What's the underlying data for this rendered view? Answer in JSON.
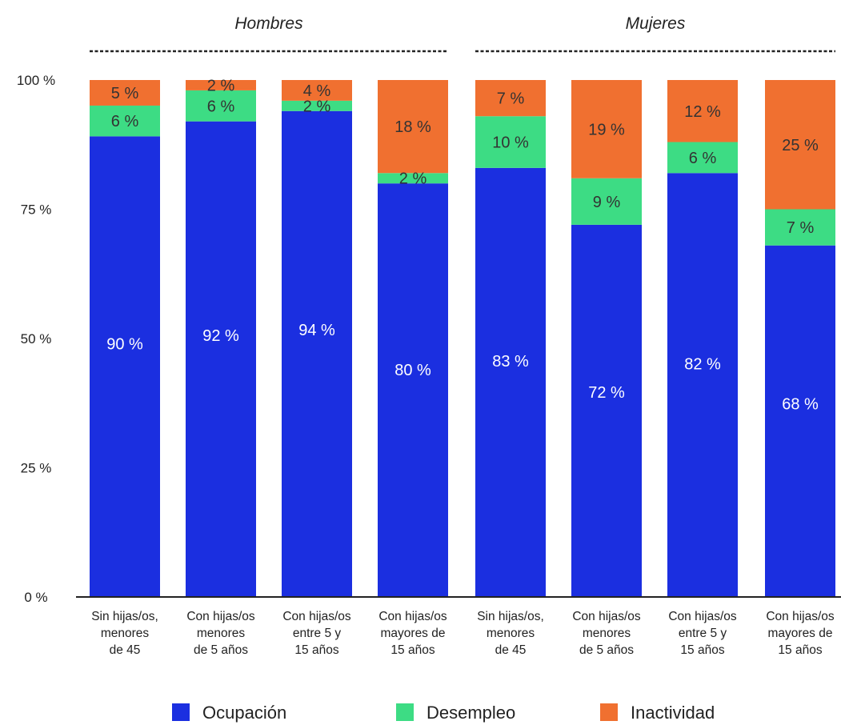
{
  "chart_data": {
    "type": "bar",
    "stacked": true,
    "groups": [
      {
        "label": "Hombres",
        "categories": [
          0,
          1,
          2,
          3
        ]
      },
      {
        "label": "Mujeres",
        "categories": [
          4,
          5,
          6,
          7
        ]
      }
    ],
    "categories": [
      [
        "Sin hijas/os,",
        "menores",
        "de 45"
      ],
      [
        "Con hijas/os",
        "menores",
        "de 5 años"
      ],
      [
        "Con hijas/os",
        "entre 5 y",
        "15 años"
      ],
      [
        "Con hijas/os",
        "mayores de",
        "15 años"
      ],
      [
        "Sin hijas/os,",
        "menores",
        "de 45"
      ],
      [
        "Con hijas/os",
        "menores",
        "de 5 años"
      ],
      [
        "Con hijas/os",
        "entre 5 y",
        "15 años"
      ],
      [
        "Con hijas/os",
        "mayores de",
        "15 años"
      ]
    ],
    "series": [
      {
        "name": "Ocupación",
        "color": "#1b2fe0",
        "values": [
          90,
          92,
          94,
          80,
          83,
          72,
          82,
          68
        ],
        "labels": [
          "90 %",
          "92 %",
          "94 %",
          "80 %",
          "83 %",
          "72 %",
          "82 %",
          "68 %"
        ],
        "label_color": "#ffffff"
      },
      {
        "name": "Desempleo",
        "color": "#3ddc84",
        "values": [
          6,
          6,
          2,
          2,
          10,
          9,
          6,
          7
        ],
        "labels": [
          "6 %",
          "6 %",
          "2 %",
          "2 %",
          "10 %",
          "9 %",
          "6 %",
          "7 %"
        ],
        "label_color": "#333333"
      },
      {
        "name": "Inactividad",
        "color": "#f07030",
        "values": [
          5,
          2,
          4,
          18,
          7,
          19,
          12,
          25
        ],
        "labels": [
          "5 %",
          "2 %",
          "4 %",
          "18 %",
          "7 %",
          "19 %",
          "12 %",
          "25 %"
        ],
        "label_color": "#333333"
      }
    ],
    "yticks": [
      0,
      25,
      50,
      75,
      100
    ],
    "ytick_labels": [
      "0 %",
      "25 %",
      "50 %",
      "75 %",
      "100 %"
    ],
    "ylim": [
      0,
      100
    ],
    "legend_position": "bottom",
    "grid": false
  }
}
